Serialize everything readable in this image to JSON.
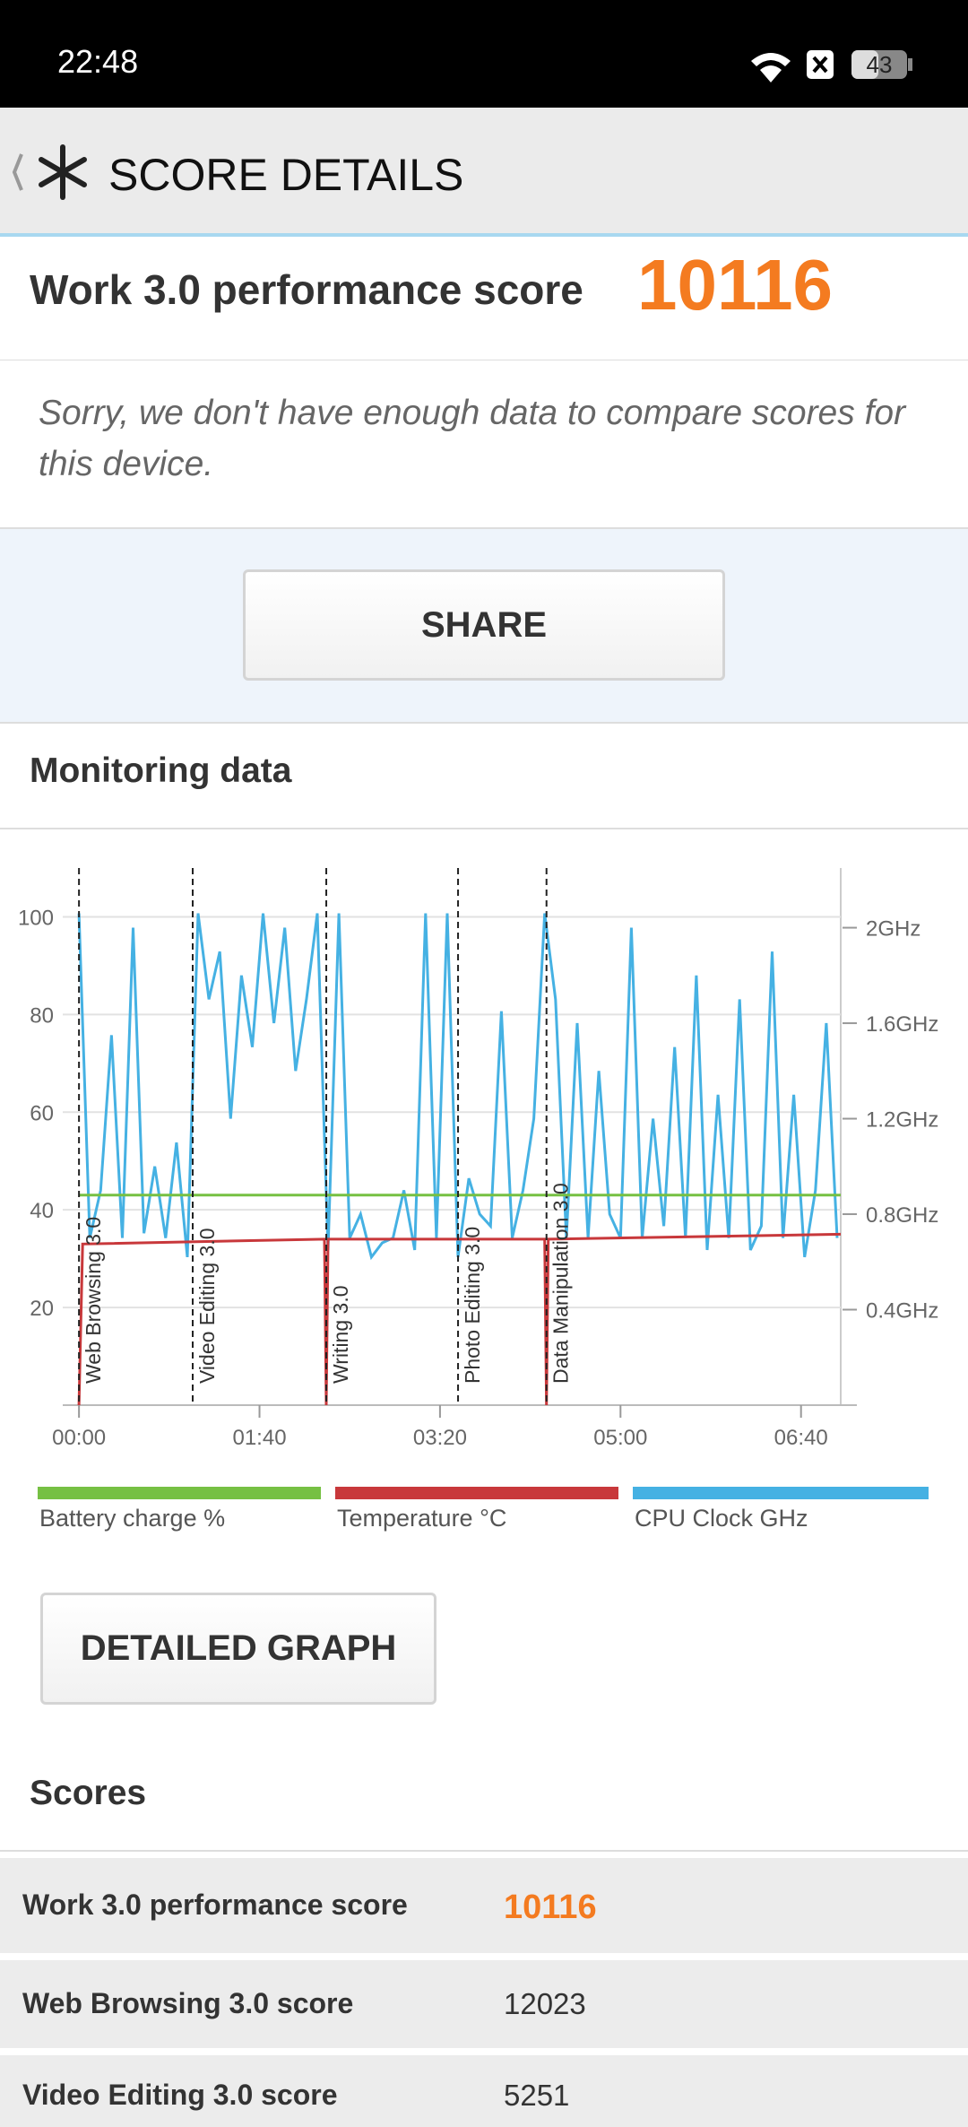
{
  "status_bar": {
    "time": "22:48",
    "battery": "43"
  },
  "header": {
    "title": "SCORE DETAILS"
  },
  "score_card": {
    "label": "Work 3.0 performance score",
    "score": "10116"
  },
  "note": "Sorry, we don't have enough data to compare scores for this device.",
  "share_button": "SHARE",
  "monitoring": {
    "title": "Monitoring data"
  },
  "chart_data": {
    "type": "line",
    "xlim": [
      -9,
      422
    ],
    "xticks": [
      {
        "value": 0,
        "label": "00:00"
      },
      {
        "value": 100,
        "label": "01:40"
      },
      {
        "value": 200,
        "label": "03:20"
      },
      {
        "value": 300,
        "label": "05:00"
      },
      {
        "value": 400,
        "label": "06:40"
      }
    ],
    "ylim": [
      0,
      110
    ],
    "yticks": [
      20,
      40,
      60,
      80,
      100
    ],
    "y2lim": [
      0,
      2.25
    ],
    "y2ticks": [
      {
        "value": 0.4,
        "label": "0.4GHz"
      },
      {
        "value": 0.8,
        "label": "0.8GHz"
      },
      {
        "value": 1.2,
        "label": "1.2GHz"
      },
      {
        "value": 1.6,
        "label": "1.6GHz"
      },
      {
        "value": 2,
        "label": "2GHz"
      }
    ],
    "grid": true,
    "markers": [
      {
        "x": 0,
        "label": "Web Browsing 3.0"
      },
      {
        "x": 63,
        "label": "Video Editing 3.0"
      },
      {
        "x": 137,
        "label": "Writing 3.0"
      },
      {
        "x": 210,
        "label": "Photo Editing 3.0"
      },
      {
        "x": 259,
        "label": "Data Manipulation 3.0"
      }
    ],
    "series": [
      {
        "name": "Battery charge %",
        "color": "#76c043",
        "x": [
          0,
          422
        ],
        "values": [
          43,
          43
        ]
      },
      {
        "name": "Temperature °C",
        "color": "#c8383b",
        "x": [
          0,
          2,
          136,
          137,
          138,
          258,
          259,
          260,
          422
        ],
        "values": [
          0,
          33,
          34,
          0,
          34,
          34,
          0,
          34,
          35
        ]
      },
      {
        "name": "CPU Clock GHz",
        "color": "#45b1e3",
        "axis": "y2",
        "x": [
          0,
          6,
          12,
          18,
          24,
          30,
          36,
          42,
          48,
          54,
          60,
          66,
          72,
          78,
          84,
          90,
          96,
          102,
          108,
          114,
          120,
          126,
          132,
          138,
          144,
          150,
          156,
          162,
          168,
          174,
          180,
          186,
          192,
          198,
          204,
          210,
          216,
          222,
          228,
          234,
          240,
          246,
          252,
          258,
          264,
          270,
          276,
          282,
          288,
          294,
          300,
          306,
          312,
          318,
          324,
          330,
          336,
          342,
          348,
          354,
          360,
          366,
          372,
          378,
          384,
          390,
          396,
          402,
          408,
          414,
          420
        ],
        "values": [
          2.06,
          0.7,
          0.9,
          1.55,
          0.7,
          2.0,
          0.72,
          1.0,
          0.7,
          1.1,
          0.62,
          2.06,
          1.7,
          1.9,
          1.2,
          1.8,
          1.5,
          2.06,
          1.6,
          2.0,
          1.4,
          1.7,
          2.06,
          0.65,
          2.06,
          0.7,
          0.8,
          0.62,
          0.68,
          0.7,
          0.9,
          0.65,
          2.06,
          0.7,
          2.06,
          0.62,
          0.95,
          0.8,
          0.75,
          1.65,
          0.7,
          0.9,
          1.2,
          2.06,
          1.7,
          0.7,
          1.6,
          0.7,
          1.4,
          0.8,
          0.7,
          2.0,
          0.7,
          1.2,
          0.75,
          1.5,
          0.7,
          1.8,
          0.65,
          1.3,
          0.7,
          1.7,
          0.65,
          0.75,
          1.9,
          0.7,
          1.3,
          0.62,
          0.9,
          1.6,
          0.7
        ]
      }
    ]
  },
  "detailed_button": "DETAILED GRAPH",
  "scores": {
    "title": "Scores",
    "rows": [
      [
        "Work 3.0 performance score",
        "10116"
      ],
      [
        "Web Browsing 3.0 score",
        "12023"
      ],
      [
        "Video Editing 3.0 score",
        "5251"
      ]
    ]
  }
}
